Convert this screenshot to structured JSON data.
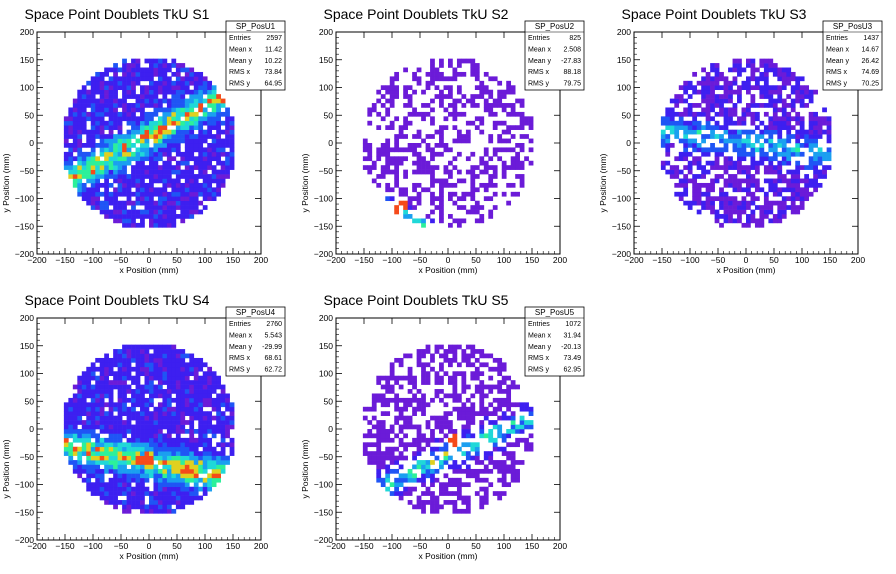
{
  "chart_data": [
    {
      "type": "heatmap",
      "title": "Space Point Doublets TkU S1",
      "xlabel": "x Position (mm)",
      "ylabel": "y Position (mm)",
      "xlim": [
        -200,
        200
      ],
      "ylim": [
        -200,
        200
      ],
      "xticks": [
        "−200",
        "−150",
        "−100",
        "−50",
        "0",
        "50",
        "100",
        "150",
        "200"
      ],
      "yticks": [
        "−200",
        "−150",
        "−100",
        "−50",
        "0",
        "50",
        "100",
        "150",
        "200"
      ],
      "stats": {
        "name": "SP_PosU1",
        "rows": [
          {
            "label": "Entries",
            "value": "2597"
          },
          {
            "label": "Mean x",
            "value": "11.42"
          },
          {
            "label": "Mean y",
            "value": "10.22"
          },
          {
            "label": "RMS x",
            "value": "73.84"
          },
          {
            "label": "RMS y",
            "value": "64.95"
          }
        ]
      },
      "density": {
        "base": 1.2,
        "noise": 1.5,
        "holes": 0.12,
        "band": {
          "x0": -40,
          "y0": -10,
          "slope": 0.55,
          "sigma": 18,
          "amp": 5.5
        },
        "hot": []
      }
    },
    {
      "type": "heatmap",
      "title": "Space Point Doublets TkU S2",
      "xlabel": "x Position (mm)",
      "ylabel": "y Position (mm)",
      "xlim": [
        -200,
        200
      ],
      "ylim": [
        -200,
        200
      ],
      "xticks": [
        "−200",
        "−150",
        "−100",
        "−50",
        "0",
        "50",
        "100",
        "150",
        "200"
      ],
      "yticks": [
        "−200",
        "−150",
        "−100",
        "−50",
        "0",
        "50",
        "100",
        "150",
        "200"
      ],
      "stats": {
        "name": "SP_PosU2",
        "rows": [
          {
            "label": "Entries",
            "value": "825"
          },
          {
            "label": "Mean x",
            "value": "2.508"
          },
          {
            "label": "Mean y",
            "value": "-27.83"
          },
          {
            "label": "RMS x",
            "value": "88.18"
          },
          {
            "label": "RMS y",
            "value": "79.75"
          }
        ]
      },
      "density": {
        "base": 0.35,
        "noise": 1.0,
        "holes": 0.5,
        "band": {
          "x0": -110,
          "y0": -110,
          "slope": -0.6,
          "sigma": 12,
          "amp": 4.5
        },
        "hot": [
          [
            -85,
            -115,
            9
          ]
        ]
      }
    },
    {
      "type": "heatmap",
      "title": "Space Point Doublets TkU S3",
      "xlabel": "x Position (mm)",
      "ylabel": "y Position (mm)",
      "xlim": [
        -200,
        200
      ],
      "ylim": [
        -200,
        200
      ],
      "xticks": [
        "−200",
        "−150",
        "−100",
        "−50",
        "0",
        "50",
        "100",
        "150",
        "200"
      ],
      "yticks": [
        "−200",
        "−150",
        "−100",
        "−50",
        "0",
        "50",
        "100",
        "150",
        "200"
      ],
      "stats": {
        "name": "SP_PosU3",
        "rows": [
          {
            "label": "Entries",
            "value": "1437"
          },
          {
            "label": "Mean x",
            "value": "14.67"
          },
          {
            "label": "Mean y",
            "value": "26.42"
          },
          {
            "label": "RMS x",
            "value": "74.69"
          },
          {
            "label": "RMS y",
            "value": "70.25"
          }
        ]
      },
      "density": {
        "base": 0.7,
        "noise": 1.3,
        "holes": 0.3,
        "band": {
          "x0": -60,
          "y0": 10,
          "slope": -0.15,
          "sigma": 16,
          "amp": 3.5
        },
        "hot": []
      }
    },
    {
      "type": "heatmap",
      "title": "Space Point Doublets TkU S4",
      "xlabel": "x Position (mm)",
      "ylabel": "y Position (mm)",
      "xlim": [
        -200,
        200
      ],
      "ylim": [
        -200,
        200
      ],
      "xticks": [
        "−200",
        "−150",
        "−100",
        "−50",
        "0",
        "50",
        "100",
        "150",
        "200"
      ],
      "yticks": [
        "−200",
        "−150",
        "−100",
        "−50",
        "0",
        "50",
        "100",
        "150",
        "200"
      ],
      "stats": {
        "name": "SP_PosU4",
        "rows": [
          {
            "label": "Entries",
            "value": "2760"
          },
          {
            "label": "Mean x",
            "value": "5.543"
          },
          {
            "label": "Mean y",
            "value": "-29.99"
          },
          {
            "label": "RMS x",
            "value": "68.61"
          },
          {
            "label": "RMS y",
            "value": "62.72"
          }
        ]
      },
      "density": {
        "base": 1.2,
        "noise": 1.4,
        "holes": 0.1,
        "band": {
          "x0": -20,
          "y0": -55,
          "slope": -0.2,
          "sigma": 18,
          "amp": 5.5
        },
        "hot": [
          [
            -5,
            -55,
            4
          ]
        ]
      }
    },
    {
      "type": "heatmap",
      "title": "Space Point Doublets TkU S5",
      "xlabel": "x Position (mm)",
      "ylabel": "y Position (mm)",
      "xlim": [
        -200,
        200
      ],
      "ylim": [
        -200,
        200
      ],
      "xticks": [
        "−200",
        "−150",
        "−100",
        "−50",
        "0",
        "50",
        "100",
        "150",
        "200"
      ],
      "yticks": [
        "−200",
        "−150",
        "−100",
        "−50",
        "0",
        "50",
        "100",
        "150",
        "200"
      ],
      "stats": {
        "name": "SP_PosU5",
        "rows": [
          {
            "label": "Entries",
            "value": "1072"
          },
          {
            "label": "Mean x",
            "value": "31.94"
          },
          {
            "label": "Mean y",
            "value": "-20.13"
          },
          {
            "label": "RMS x",
            "value": "73.49"
          },
          {
            "label": "RMS y",
            "value": "62.95"
          }
        ]
      },
      "density": {
        "base": 0.4,
        "noise": 1.0,
        "holes": 0.45,
        "band": {
          "x0": -60,
          "y0": -75,
          "slope": 0.45,
          "sigma": 14,
          "amp": 5.0
        },
        "hot": [
          [
            15,
            -20,
            8
          ]
        ]
      }
    }
  ],
  "palette": [
    "#6b1bd8",
    "#3d1ff0",
    "#1f55f5",
    "#1a9ff0",
    "#1fd8d8",
    "#2cf09a",
    "#e0d020",
    "#f54a1a"
  ]
}
